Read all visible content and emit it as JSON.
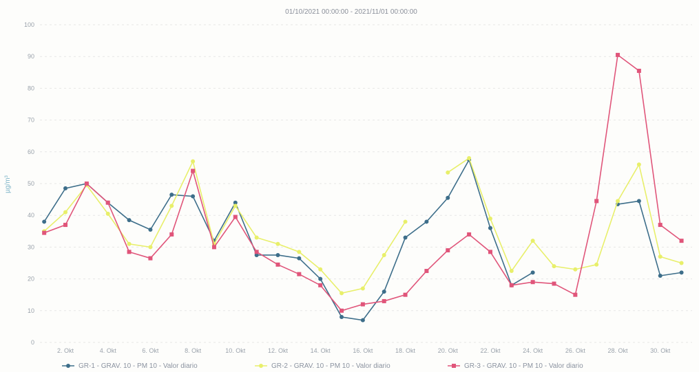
{
  "chart_data": {
    "type": "line",
    "title": "01/10/2021 00:00:00 - 2021/11/01 00:00:00",
    "ylabel": "µg/m³",
    "xlabel": "",
    "ylim": [
      0,
      100
    ],
    "yticks": [
      0,
      10,
      20,
      30,
      40,
      50,
      60,
      70,
      80,
      90,
      100
    ],
    "grid": true,
    "legend_position": "bottom",
    "x_tick_labels": [
      "2. Okt",
      "4. Okt",
      "6. Okt",
      "8. Okt",
      "10. Okt",
      "12. Okt",
      "14. Okt",
      "16. Okt",
      "18. Okt",
      "20. Okt",
      "22. Okt",
      "24. Okt",
      "26. Okt",
      "28. Okt",
      "30. Okt"
    ],
    "x_tick_positions": [
      2,
      4,
      6,
      8,
      10,
      12,
      14,
      16,
      18,
      20,
      22,
      24,
      26,
      28,
      30
    ],
    "x_range": [
      0.8,
      31.5
    ],
    "series": [
      {
        "name": "GR-1 - GRAV. 10 - PM 10 - Valor diario",
        "color": "#3d6e8a",
        "x": [
          1,
          2,
          3,
          4,
          5,
          6,
          7,
          8,
          9,
          10,
          11,
          12,
          13,
          14,
          15,
          16,
          17,
          18,
          19,
          20,
          21,
          22,
          23,
          24,
          28,
          29,
          30,
          31
        ],
        "values": [
          38,
          48.5,
          50,
          44,
          38.5,
          35.5,
          46.5,
          46,
          32,
          44,
          27.5,
          27.5,
          26.5,
          20,
          8,
          7,
          16,
          33,
          38,
          45.5,
          57.5,
          36,
          18,
          22,
          43.5,
          44.5,
          21,
          22
        ]
      },
      {
        "name": "GR-2 - GRAV. 10 - PM 10 - Valor diario",
        "color": "#e8ef6a",
        "x": [
          1,
          2,
          3,
          4,
          5,
          6,
          7,
          8,
          9,
          10,
          11,
          12,
          13,
          14,
          15,
          16,
          17,
          18,
          20,
          21,
          22,
          23,
          24,
          25,
          26,
          27,
          28,
          29,
          30,
          31
        ],
        "values": [
          35,
          41,
          49.5,
          40.5,
          31,
          30,
          43,
          57,
          31,
          43,
          33,
          31,
          28.5,
          23,
          15.5,
          17,
          27.5,
          38,
          53.5,
          58,
          39,
          22.5,
          32,
          24,
          23,
          24.5,
          44.5,
          56,
          27,
          25
        ]
      },
      {
        "name": "GR-3 - GRAV. 10 - PM 10 - Valor diario",
        "color": "#e0557a",
        "x": [
          1,
          2,
          3,
          4,
          5,
          6,
          7,
          8,
          9,
          10,
          11,
          12,
          13,
          14,
          15,
          16,
          17,
          18,
          19,
          20,
          21,
          22,
          23,
          24,
          25,
          26,
          27,
          28,
          29,
          30,
          31
        ],
        "values": [
          34.5,
          37,
          50,
          44,
          28.5,
          26.5,
          34,
          54,
          30,
          39.5,
          28.5,
          24.5,
          21.5,
          18,
          10,
          12,
          13,
          15,
          22.5,
          29,
          34,
          28.5,
          18,
          19,
          18.5,
          15,
          44.5,
          90.5,
          85.5,
          37,
          32
        ]
      }
    ]
  }
}
